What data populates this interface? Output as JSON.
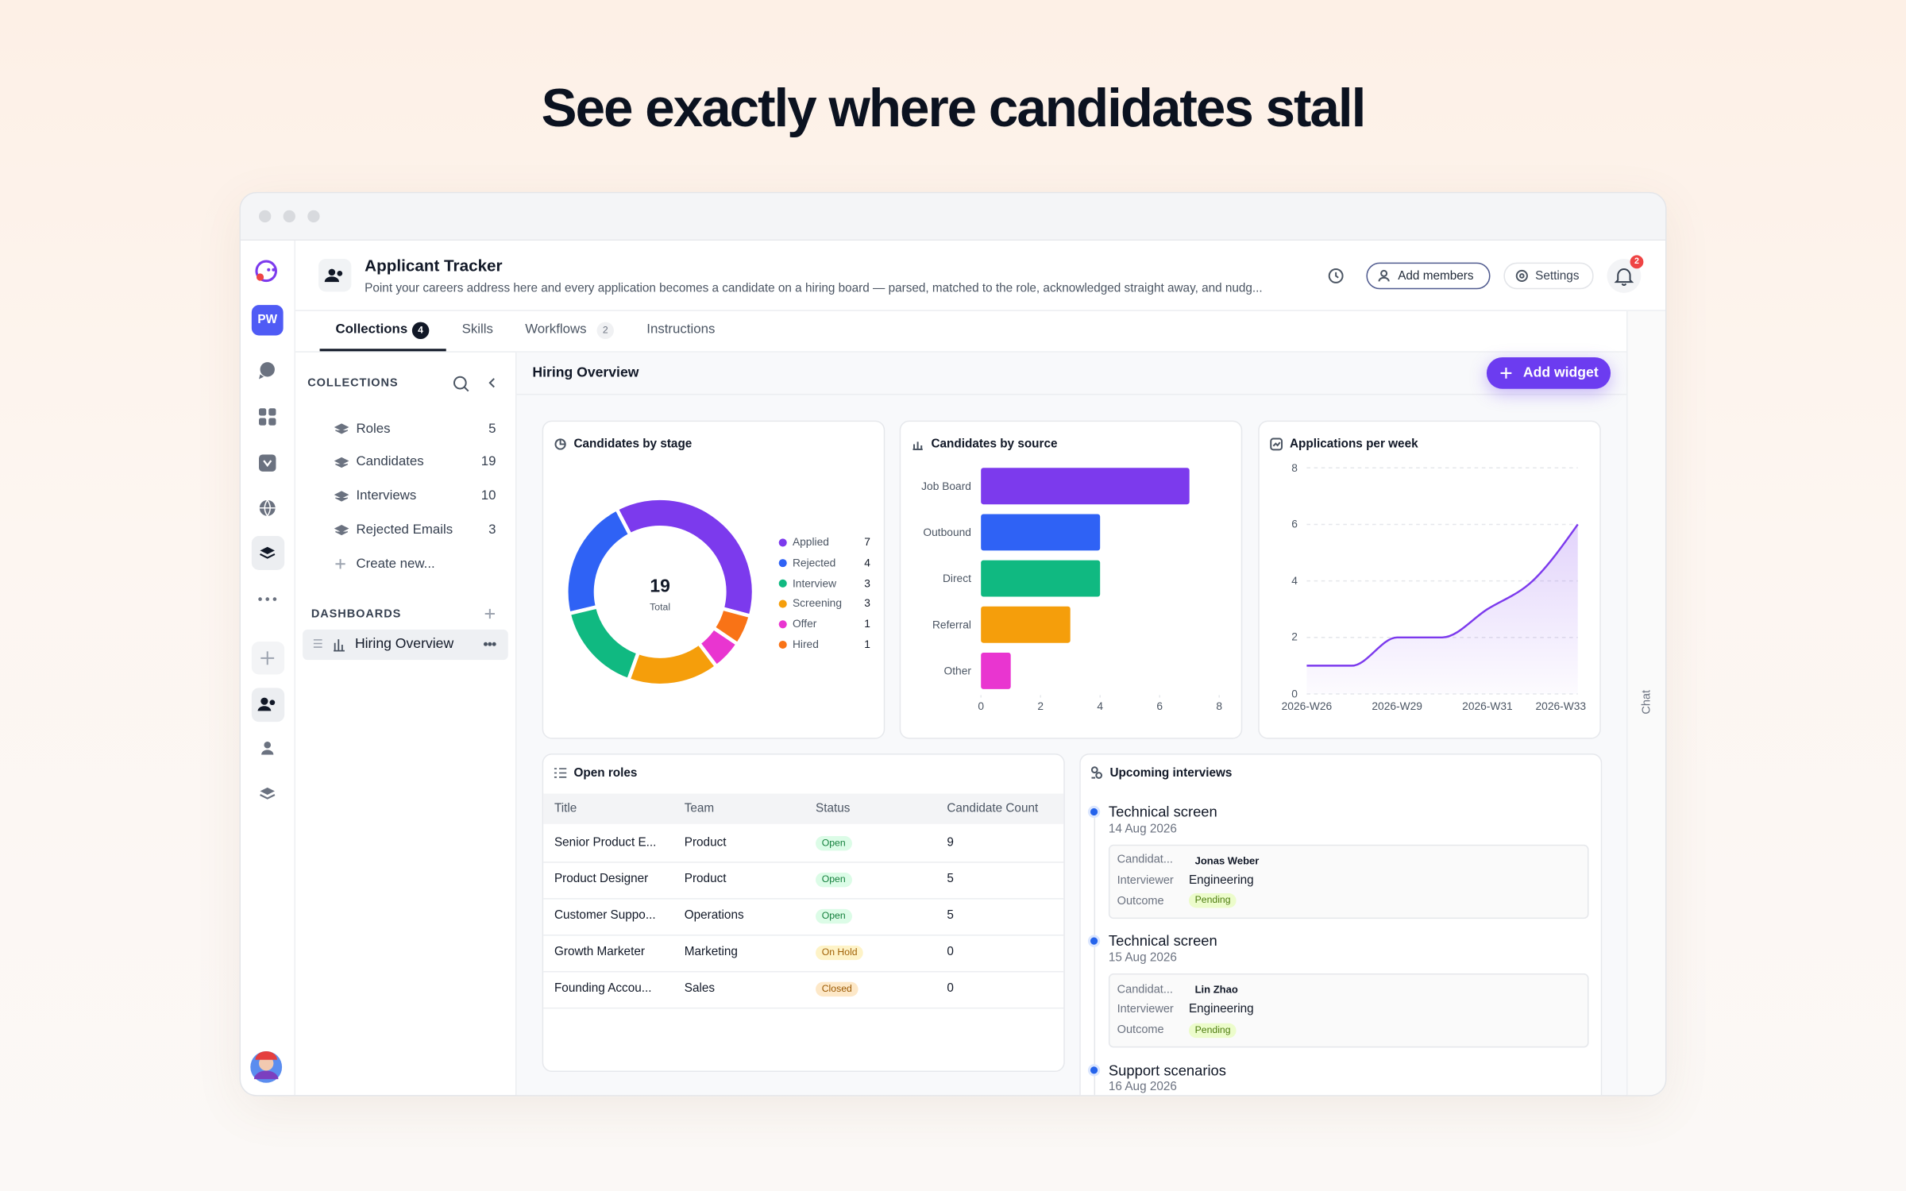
{
  "headline": "See exactly where candidates stall",
  "app": {
    "title": "Applicant Tracker",
    "description": "Point your careers address here and every application becomes a candidate on a hiring board — parsed, matched to the role, acknowledged straight away, and nudg...",
    "user_initials": "PW",
    "add_members": "Add members",
    "settings": "Settings",
    "notifications": 2,
    "side_panel": "Chat"
  },
  "tabs": [
    {
      "label": "Collections",
      "count": 4
    },
    {
      "label": "Skills"
    },
    {
      "label": "Workflows",
      "count": 2
    },
    {
      "label": "Instructions"
    }
  ],
  "collections": {
    "heading": "COLLECTIONS",
    "items": [
      {
        "name": "Roles",
        "count": 5
      },
      {
        "name": "Candidates",
        "count": 19
      },
      {
        "name": "Interviews",
        "count": 10
      },
      {
        "name": "Rejected Emails",
        "count": 3
      }
    ],
    "create": "Create new..."
  },
  "dashboards": {
    "heading": "DASHBOARDS",
    "items": [
      "Hiring Overview"
    ]
  },
  "dashboard": {
    "title": "Hiring Overview",
    "add_widget": "Add widget"
  },
  "stage_chart": {
    "type": "donut",
    "title": "Candidates by stage",
    "total": 19,
    "total_label": "Total",
    "categories": [
      "Applied",
      "Rejected",
      "Interview",
      "Screening",
      "Offer",
      "Hired"
    ],
    "values": [
      7,
      4,
      3,
      3,
      1,
      1
    ],
    "colors": [
      "#7c3aed",
      "#2f62f5",
      "#10b981",
      "#f59e0b",
      "#e935d0",
      "#f97316"
    ]
  },
  "source_chart": {
    "type": "bar",
    "orientation": "horizontal",
    "title": "Candidates by source",
    "categories": [
      "Job Board",
      "Outbound",
      "Direct",
      "Referral",
      "Other"
    ],
    "values": [
      7,
      4,
      4,
      3,
      1
    ],
    "colors": [
      "#7c3aed",
      "#2f62f5",
      "#10b981",
      "#f59e0b",
      "#e935d0"
    ],
    "xlim": [
      0,
      8
    ],
    "xticks": [
      0,
      2,
      4,
      6,
      8
    ]
  },
  "weekly_chart": {
    "type": "line",
    "title": "Applications per week",
    "categories": [
      "2026-W26",
      null,
      "2026-W29",
      null,
      "2026-W31",
      null,
      "2026-W33"
    ],
    "values": [
      1,
      1,
      2,
      2,
      3,
      4,
      6
    ],
    "color": "#7c3aed",
    "ylim": [
      0,
      8
    ],
    "yticks": [
      0,
      2,
      4,
      6,
      8
    ],
    "grid": true
  },
  "open_roles": {
    "title": "Open roles",
    "columns": [
      "Title",
      "Team",
      "Status",
      "Candidate Count"
    ],
    "rows": [
      [
        "Senior Product E...",
        "Product",
        "Open",
        9
      ],
      [
        "Product Designer",
        "Product",
        "Open",
        5
      ],
      [
        "Customer Suppo...",
        "Operations",
        "Open",
        5
      ],
      [
        "Growth Marketer",
        "Marketing",
        "On Hold",
        0
      ],
      [
        "Founding Accou...",
        "Sales",
        "Closed",
        0
      ]
    ],
    "status_styles": [
      {
        "background": "#dcfce7",
        "color": "#15803d"
      },
      {
        "background": "#dcfce7",
        "color": "#15803d"
      },
      {
        "background": "#dcfce7",
        "color": "#15803d"
      },
      {
        "background": "#fef3c7",
        "color": "#a16207"
      },
      {
        "background": "#fde8c8",
        "color": "#9a5800"
      }
    ]
  },
  "interviews": {
    "title": "Upcoming interviews",
    "items": [
      {
        "title": "Technical screen",
        "date": "14 Aug 2026",
        "fields": [
          {
            "label": "Candidat...",
            "value": "Jonas Weber"
          },
          {
            "label": "Interviewer",
            "value": "Engineering"
          },
          {
            "label": "Outcome",
            "value": "Pending"
          }
        ]
      },
      {
        "title": "Technical screen",
        "date": "15 Aug 2026",
        "fields": [
          {
            "label": "Candidat...",
            "value": "Lin Zhao"
          },
          {
            "label": "Interviewer",
            "value": "Engineering"
          },
          {
            "label": "Outcome",
            "value": "Pending"
          }
        ]
      },
      {
        "title": "Support scenarios",
        "date": "16 Aug 2026"
      }
    ]
  }
}
